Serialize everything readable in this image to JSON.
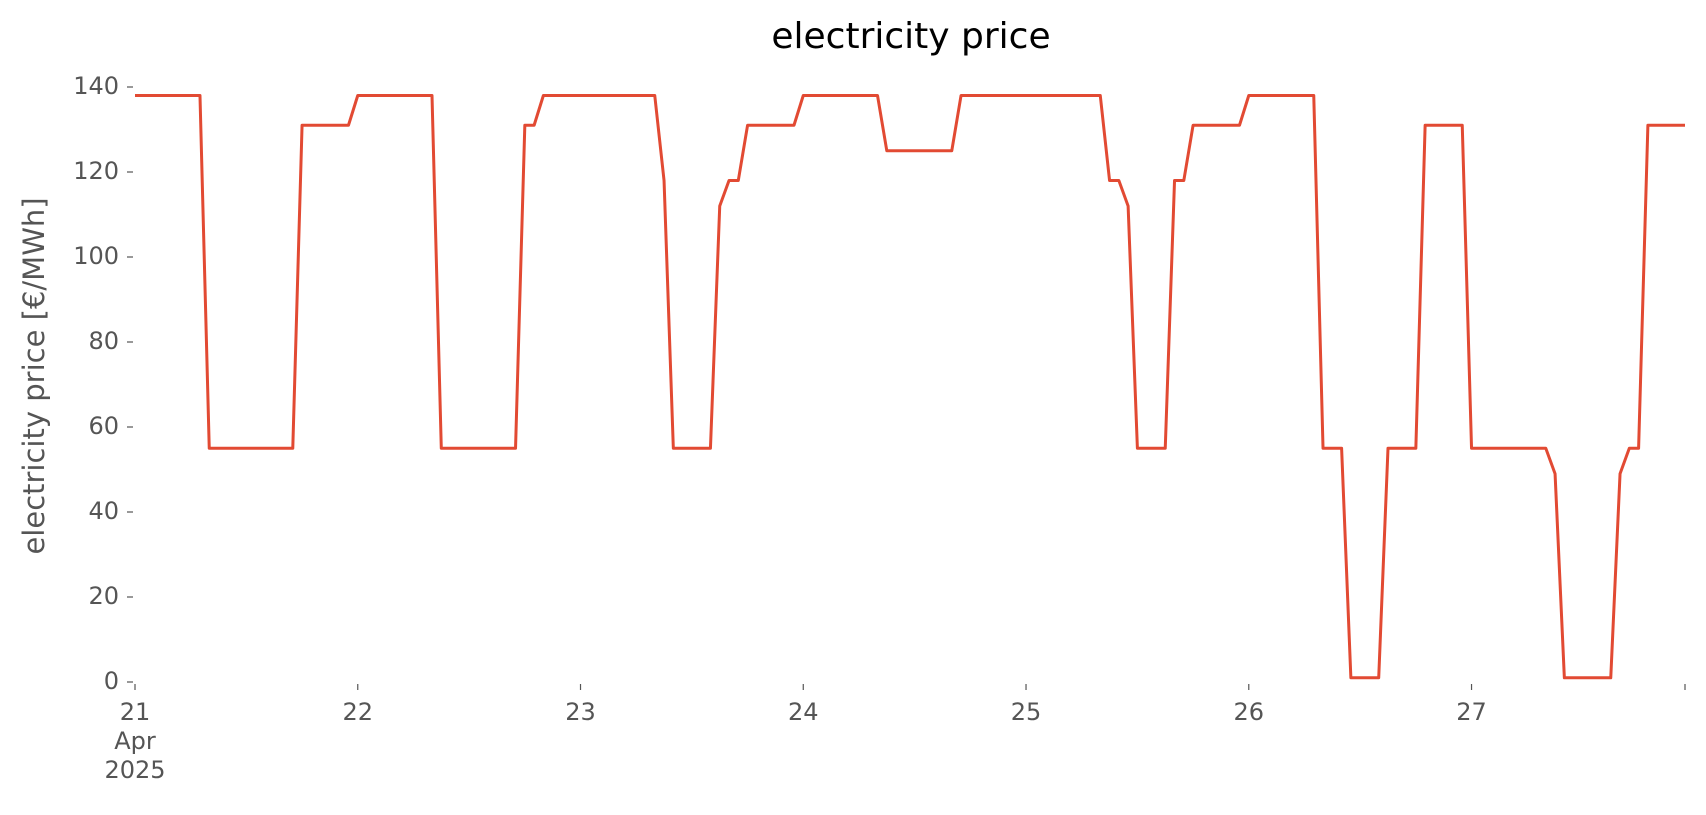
{
  "chart_data": {
    "type": "line",
    "title": "electricity price",
    "ylabel": "electricity price [€/MWh]",
    "x": [
      21,
      21.2917,
      21.3333,
      21.7083,
      21.75,
      21.9583,
      22,
      22.3333,
      22.375,
      22.7083,
      22.75,
      22.7917,
      22.8333,
      23.3333,
      23.375,
      23.4167,
      23.5833,
      23.625,
      23.6667,
      23.7083,
      23.75,
      23.9583,
      24,
      24.3333,
      24.375,
      24.6667,
      24.7083,
      25.3333,
      25.375,
      25.4167,
      25.4583,
      25.5,
      25.625,
      25.6667,
      25.7083,
      25.75,
      25.9583,
      26,
      26.2917,
      26.3333,
      26.4167,
      26.4583,
      26.5833,
      26.625,
      26.75,
      26.7917,
      26.9583,
      27,
      27.3333,
      27.375,
      27.4167,
      27.625,
      27.6667,
      27.7083,
      27.75,
      27.7917,
      27.9583
    ],
    "series": [
      {
        "name": "electricity price",
        "color": "#e24a33",
        "values": [
          138,
          138,
          55,
          55,
          131,
          131,
          138,
          138,
          55,
          55,
          131,
          131,
          138,
          138,
          118,
          55,
          55,
          112,
          118,
          118,
          131,
          131,
          138,
          138,
          125,
          125,
          138,
          138,
          118,
          118,
          112,
          55,
          55,
          118,
          118,
          131,
          131,
          138,
          138,
          55,
          55,
          1,
          1,
          55,
          55,
          131,
          131,
          55,
          55,
          49,
          1,
          1,
          49,
          55,
          55,
          131,
          131
        ]
      }
    ],
    "xlim": [
      21,
      27.9583
    ],
    "xticks": [
      {
        "value": 21,
        "label": "21\nApr\n2025"
      },
      22,
      23,
      24,
      25,
      26,
      27
    ],
    "ylim": [
      0,
      140
    ],
    "yticks": [
      0,
      20,
      40,
      60,
      80,
      100,
      120,
      140
    ],
    "grid": false
  }
}
